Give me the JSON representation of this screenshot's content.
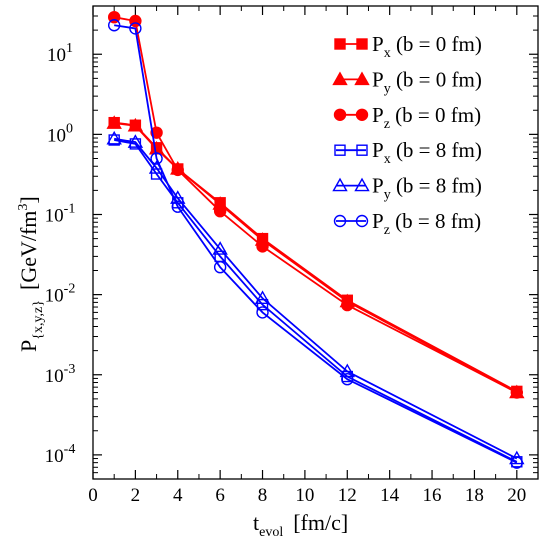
{
  "chart_data": {
    "type": "line",
    "xlabel": {
      "main": "t",
      "sub": "evol",
      "unit": "[fm/c]"
    },
    "ylabel": {
      "main": "P",
      "sub": "{x,y,z}",
      "unit_pre": "[GeV/fm",
      "unit_sup": "3",
      "unit_post": "]"
    },
    "xlim": [
      0,
      21
    ],
    "ylim": [
      5e-05,
      40
    ],
    "yscale": "log",
    "xticks": [
      0,
      2,
      4,
      6,
      8,
      10,
      12,
      14,
      16,
      18,
      20
    ],
    "xtick_labels": [
      "0",
      "2",
      "4",
      "6",
      "8",
      "10",
      "12",
      "14",
      "16",
      "18",
      "20"
    ],
    "yticks": [
      0.0001,
      0.001,
      0.01,
      0.1,
      1,
      10
    ],
    "ytick_labels": [
      {
        "base": "10",
        "exp": "-4"
      },
      {
        "base": "10",
        "exp": "-3"
      },
      {
        "base": "10",
        "exp": "-2"
      },
      {
        "base": "10",
        "exp": "-1"
      },
      {
        "base": "10",
        "exp": "0"
      },
      {
        "base": "10",
        "exp": "1"
      }
    ],
    "legend_position": "top-right",
    "series": [
      {
        "name": "Px (b = 0 fm)",
        "label_main": "P",
        "label_sub": "x",
        "label_rest": " (b = 0 fm)",
        "color": "#ff0000",
        "marker": "square",
        "filled": true,
        "x": [
          1,
          2,
          3,
          4,
          6,
          8,
          12,
          20
        ],
        "y": [
          1.4,
          1.3,
          0.68,
          0.37,
          0.14,
          0.05,
          0.0085,
          0.00062
        ]
      },
      {
        "name": "Py (b = 0 fm)",
        "label_main": "P",
        "label_sub": "y",
        "label_rest": " (b = 0 fm)",
        "color": "#ff0000",
        "marker": "triangle",
        "filled": true,
        "x": [
          1,
          2,
          3,
          4,
          6,
          8,
          12,
          20
        ],
        "y": [
          1.38,
          1.28,
          0.66,
          0.37,
          0.135,
          0.048,
          0.0082,
          0.0006
        ]
      },
      {
        "name": "Pz (b = 0 fm)",
        "label_main": "P",
        "label_sub": "z",
        "label_rest": " (b = 0 fm)",
        "color": "#ff0000",
        "marker": "circle",
        "filled": true,
        "x": [
          1,
          2,
          3,
          4,
          6,
          8,
          12,
          20
        ],
        "y": [
          29,
          26,
          1.05,
          0.36,
          0.11,
          0.04,
          0.0074,
          0.0006
        ]
      },
      {
        "name": "Px (b = 8 fm)",
        "label_main": "P",
        "label_sub": "x",
        "label_rest": " (b = 8 fm)",
        "color": "#0000ff",
        "marker": "square",
        "filled": false,
        "x": [
          1,
          2,
          3,
          4,
          6,
          8,
          12,
          20
        ],
        "y": [
          0.85,
          0.76,
          0.32,
          0.14,
          0.03,
          0.0075,
          0.00095,
          8.2e-05
        ]
      },
      {
        "name": "Py (b = 8 fm)",
        "label_main": "P",
        "label_sub": "y",
        "label_rest": " (b = 8 fm)",
        "color": "#0000ff",
        "marker": "triangle",
        "filled": false,
        "x": [
          1,
          2,
          3,
          4,
          6,
          8,
          12,
          20
        ],
        "y": [
          0.88,
          0.8,
          0.38,
          0.16,
          0.037,
          0.009,
          0.0011,
          9e-05
        ]
      },
      {
        "name": "Pz (b = 8 fm)",
        "label_main": "P",
        "label_sub": "z",
        "label_rest": " (b = 8 fm)",
        "color": "#0000ff",
        "marker": "circle",
        "filled": false,
        "x": [
          1,
          2,
          3,
          4,
          6,
          8,
          12,
          20
        ],
        "y": [
          23,
          21,
          0.5,
          0.125,
          0.022,
          0.006,
          0.00088,
          8e-05
        ]
      }
    ]
  }
}
